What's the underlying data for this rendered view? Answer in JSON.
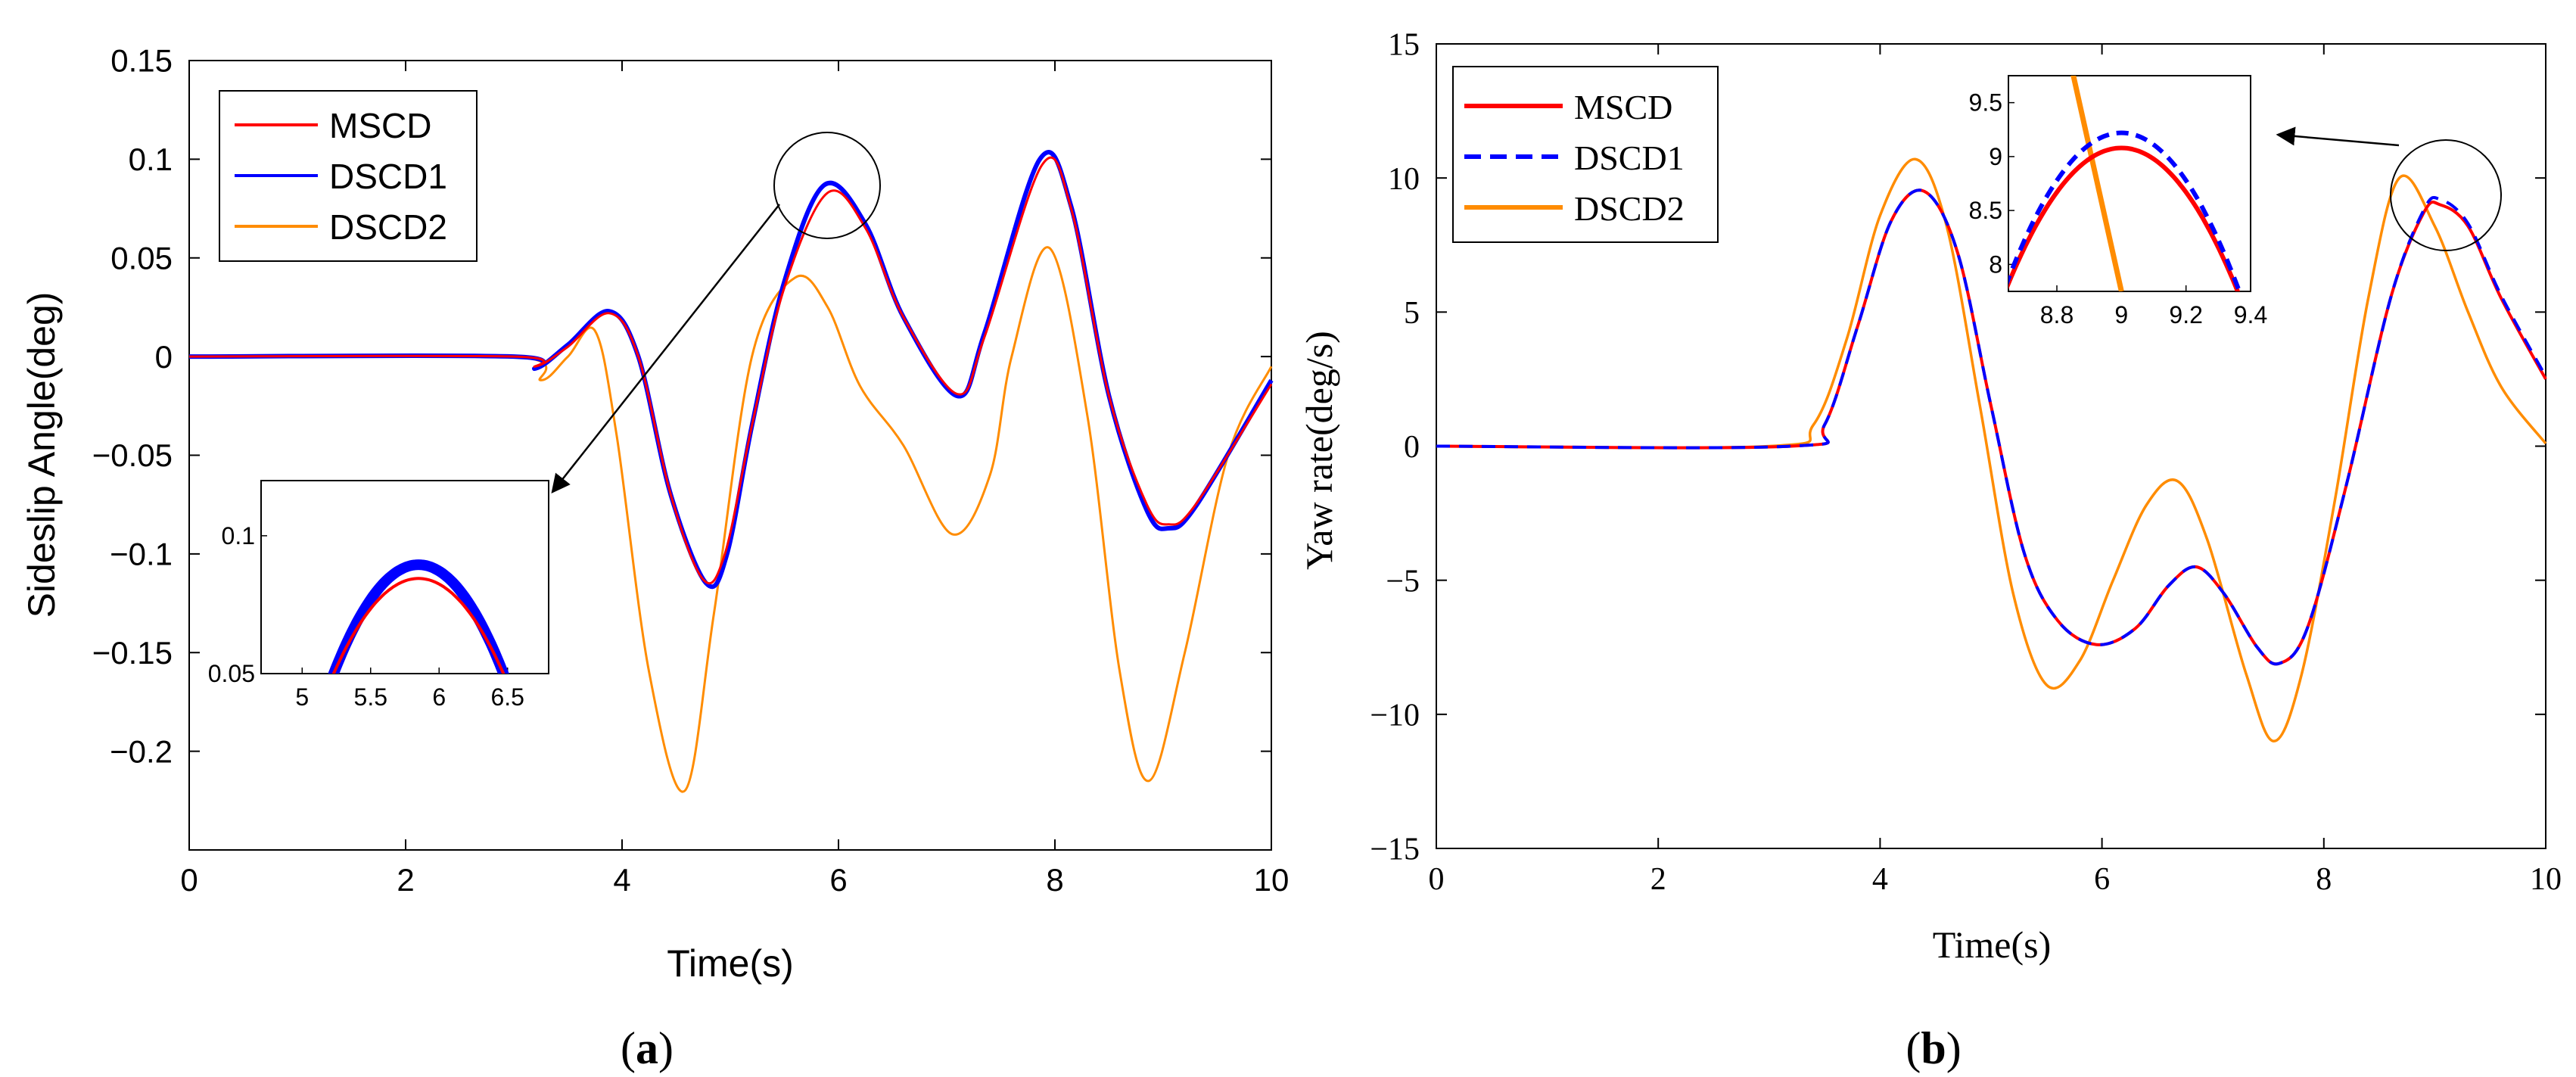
{
  "figure": {
    "panels": [
      {
        "caption": "(",
        "caption_letter": "a",
        "caption_close": ")"
      },
      {
        "caption": "(",
        "caption_letter": "b",
        "caption_close": ")"
      }
    ]
  },
  "chart_data": [
    {
      "id": "a",
      "type": "line",
      "title": "",
      "xlabel": "Time(s)",
      "ylabel": "Sideslip Angle(deg)",
      "xlim": [
        0,
        10
      ],
      "ylim": [
        -0.25,
        0.15
      ],
      "xticks": [
        0,
        2,
        4,
        6,
        8,
        10
      ],
      "xtick_labels": [
        "0",
        "2",
        "4",
        "6",
        "8",
        "10"
      ],
      "yticks": [
        -0.2,
        -0.15,
        -0.1,
        -0.05,
        0,
        0.05,
        0.1,
        0.15
      ],
      "ytick_labels": [
        "−0.2",
        "−0.15",
        "−0.1",
        "−0.05",
        "0",
        "0.05",
        "0.1",
        "0.15"
      ],
      "grid": false,
      "legend": "top-left",
      "series": [
        {
          "name": "MSCD",
          "color": "#ff0000",
          "style": "solid",
          "points": [
            [
              0,
              0
            ],
            [
              3,
              0
            ],
            [
              3.2,
              -0.005
            ],
            [
              3.5,
              0.005
            ],
            [
              3.88,
              0.022
            ],
            [
              4.15,
              0.0
            ],
            [
              4.45,
              -0.07
            ],
            [
              4.75,
              -0.113
            ],
            [
              4.95,
              -0.1
            ],
            [
              5.2,
              -0.035
            ],
            [
              5.5,
              0.035
            ],
            [
              5.9,
              0.083
            ],
            [
              6.25,
              0.065
            ],
            [
              6.6,
              0.02
            ],
            [
              7.1,
              -0.019
            ],
            [
              7.35,
              0.01
            ],
            [
              7.88,
              0.097
            ],
            [
              8.15,
              0.075
            ],
            [
              8.5,
              -0.02
            ],
            [
              8.85,
              -0.075
            ],
            [
              9.05,
              -0.085
            ],
            [
              9.3,
              -0.075
            ],
            [
              10,
              -0.014
            ]
          ]
        },
        {
          "name": "DSCD1",
          "color": "#0000ff",
          "style": "solid",
          "points": [
            [
              0,
              0
            ],
            [
              3,
              0
            ],
            [
              3.2,
              -0.006
            ],
            [
              3.5,
              0.006
            ],
            [
              3.88,
              0.023
            ],
            [
              4.15,
              0.0
            ],
            [
              4.45,
              -0.07
            ],
            [
              4.78,
              -0.115
            ],
            [
              4.97,
              -0.1
            ],
            [
              5.2,
              -0.035
            ],
            [
              5.5,
              0.038
            ],
            [
              5.87,
              0.087
            ],
            [
              6.25,
              0.067
            ],
            [
              6.6,
              0.02
            ],
            [
              7.1,
              -0.02
            ],
            [
              7.35,
              0.012
            ],
            [
              7.86,
              0.1
            ],
            [
              8.15,
              0.076
            ],
            [
              8.5,
              -0.02
            ],
            [
              8.85,
              -0.078
            ],
            [
              9.05,
              -0.087
            ],
            [
              9.3,
              -0.076
            ],
            [
              10,
              -0.012
            ]
          ]
        },
        {
          "name": "DSCD2",
          "color": "#ff8c00",
          "style": "solid",
          "points": [
            [
              0,
              0
            ],
            [
              3,
              0
            ],
            [
              3.25,
              -0.012
            ],
            [
              3.5,
              0.0
            ],
            [
              3.75,
              0.013
            ],
            [
              3.95,
              -0.04
            ],
            [
              4.25,
              -0.16
            ],
            [
              4.58,
              -0.22
            ],
            [
              4.85,
              -0.13
            ],
            [
              5.2,
              0.0
            ],
            [
              5.6,
              0.04
            ],
            [
              5.9,
              0.025
            ],
            [
              6.2,
              -0.015
            ],
            [
              6.6,
              -0.045
            ],
            [
              7.05,
              -0.09
            ],
            [
              7.4,
              -0.06
            ],
            [
              7.6,
              0.0
            ],
            [
              7.95,
              0.055
            ],
            [
              8.3,
              -0.03
            ],
            [
              8.6,
              -0.16
            ],
            [
              8.87,
              -0.215
            ],
            [
              9.2,
              -0.15
            ],
            [
              9.6,
              -0.05
            ],
            [
              10,
              -0.005
            ]
          ]
        }
      ],
      "inset": {
        "xlim": [
          4.7,
          6.8
        ],
        "ylim": [
          0.05,
          0.12
        ],
        "xticks": [
          5,
          5.5,
          6,
          6.5
        ],
        "xtick_labels": [
          "5",
          "5.5",
          "6",
          "6.5"
        ],
        "yticks": [
          0.05,
          0.1
        ],
        "ytick_labels": [
          "0.05",
          "0.1"
        ]
      }
    },
    {
      "id": "b",
      "type": "line",
      "title": "",
      "xlabel": "Time(s)",
      "ylabel": "Yaw rate(deg/s)",
      "xlim": [
        0,
        10
      ],
      "ylim": [
        -15,
        15
      ],
      "xticks": [
        0,
        2,
        4,
        6,
        8,
        10
      ],
      "xtick_labels": [
        "0",
        "2",
        "4",
        "6",
        "8",
        "10"
      ],
      "yticks": [
        -15,
        -10,
        -5,
        0,
        5,
        10,
        15
      ],
      "ytick_labels": [
        "−15",
        "−10",
        "−5",
        "0",
        "5",
        "10",
        "15"
      ],
      "grid": false,
      "legend": "top-left",
      "series": [
        {
          "name": "MSCD",
          "color": "#ff0000",
          "style": "solid",
          "points": [
            [
              0,
              0
            ],
            [
              3.2,
              0
            ],
            [
              3.5,
              0.8
            ],
            [
              3.8,
              4.5
            ],
            [
              4.1,
              8.4
            ],
            [
              4.4,
              9.5
            ],
            [
              4.7,
              7.2
            ],
            [
              5.0,
              1.5
            ],
            [
              5.3,
              -4.0
            ],
            [
              5.6,
              -6.5
            ],
            [
              5.95,
              -7.4
            ],
            [
              6.3,
              -6.8
            ],
            [
              6.6,
              -5.2
            ],
            [
              6.85,
              -4.5
            ],
            [
              7.1,
              -5.5
            ],
            [
              7.4,
              -7.5
            ],
            [
              7.6,
              -8.1
            ],
            [
              7.85,
              -6.8
            ],
            [
              8.2,
              -1.5
            ],
            [
              8.6,
              5.5
            ],
            [
              8.9,
              8.7
            ],
            [
              9.05,
              9.0
            ],
            [
              9.3,
              8.2
            ],
            [
              9.6,
              5.5
            ],
            [
              10,
              2.5
            ]
          ]
        },
        {
          "name": "DSCD1",
          "color": "#0000ff",
          "style": "dashed",
          "points": [
            [
              0,
              0
            ],
            [
              3.2,
              0
            ],
            [
              3.5,
              0.8
            ],
            [
              3.8,
              4.5
            ],
            [
              4.1,
              8.4
            ],
            [
              4.4,
              9.5
            ],
            [
              4.7,
              7.2
            ],
            [
              5.0,
              1.5
            ],
            [
              5.3,
              -4.0
            ],
            [
              5.6,
              -6.5
            ],
            [
              5.95,
              -7.4
            ],
            [
              6.3,
              -6.8
            ],
            [
              6.6,
              -5.2
            ],
            [
              6.85,
              -4.5
            ],
            [
              7.1,
              -5.5
            ],
            [
              7.4,
              -7.5
            ],
            [
              7.6,
              -8.1
            ],
            [
              7.85,
              -6.8
            ],
            [
              8.2,
              -1.5
            ],
            [
              8.6,
              5.5
            ],
            [
              8.9,
              8.8
            ],
            [
              9.05,
              9.2
            ],
            [
              9.3,
              8.3
            ],
            [
              9.6,
              5.6
            ],
            [
              10,
              2.6
            ]
          ]
        },
        {
          "name": "DSCD2",
          "color": "#ff8c00",
          "style": "solid",
          "points": [
            [
              0,
              0
            ],
            [
              3.0,
              0
            ],
            [
              3.4,
              0.8
            ],
            [
              3.7,
              4.0
            ],
            [
              4.0,
              8.6
            ],
            [
              4.32,
              10.7
            ],
            [
              4.6,
              8.2
            ],
            [
              4.9,
              1.5
            ],
            [
              5.2,
              -5.5
            ],
            [
              5.5,
              -8.9
            ],
            [
              5.8,
              -8.0
            ],
            [
              6.1,
              -5.0
            ],
            [
              6.4,
              -2.2
            ],
            [
              6.68,
              -1.3
            ],
            [
              6.95,
              -3.5
            ],
            [
              7.3,
              -8.5
            ],
            [
              7.55,
              -11.0
            ],
            [
              7.8,
              -8.5
            ],
            [
              8.1,
              -2.0
            ],
            [
              8.4,
              5.5
            ],
            [
              8.68,
              10.0
            ],
            [
              9.0,
              8.2
            ],
            [
              9.3,
              5.0
            ],
            [
              9.6,
              2.2
            ],
            [
              10,
              0.1
            ]
          ]
        }
      ],
      "inset": {
        "xlim": [
          8.65,
          9.4
        ],
        "ylim": [
          7.75,
          9.75
        ],
        "xticks": [
          8.8,
          9,
          9.2,
          9.4
        ],
        "xtick_labels": [
          "8.8",
          "9",
          "9.2",
          "9.4"
        ],
        "yticks": [
          8,
          8.5,
          9,
          9.5
        ],
        "ytick_labels": [
          "8",
          "8.5",
          "9",
          "9.5"
        ],
        "orange_line": [
          [
            8.84,
            9.9
          ],
          [
            9.0,
            7.75
          ]
        ]
      }
    }
  ]
}
